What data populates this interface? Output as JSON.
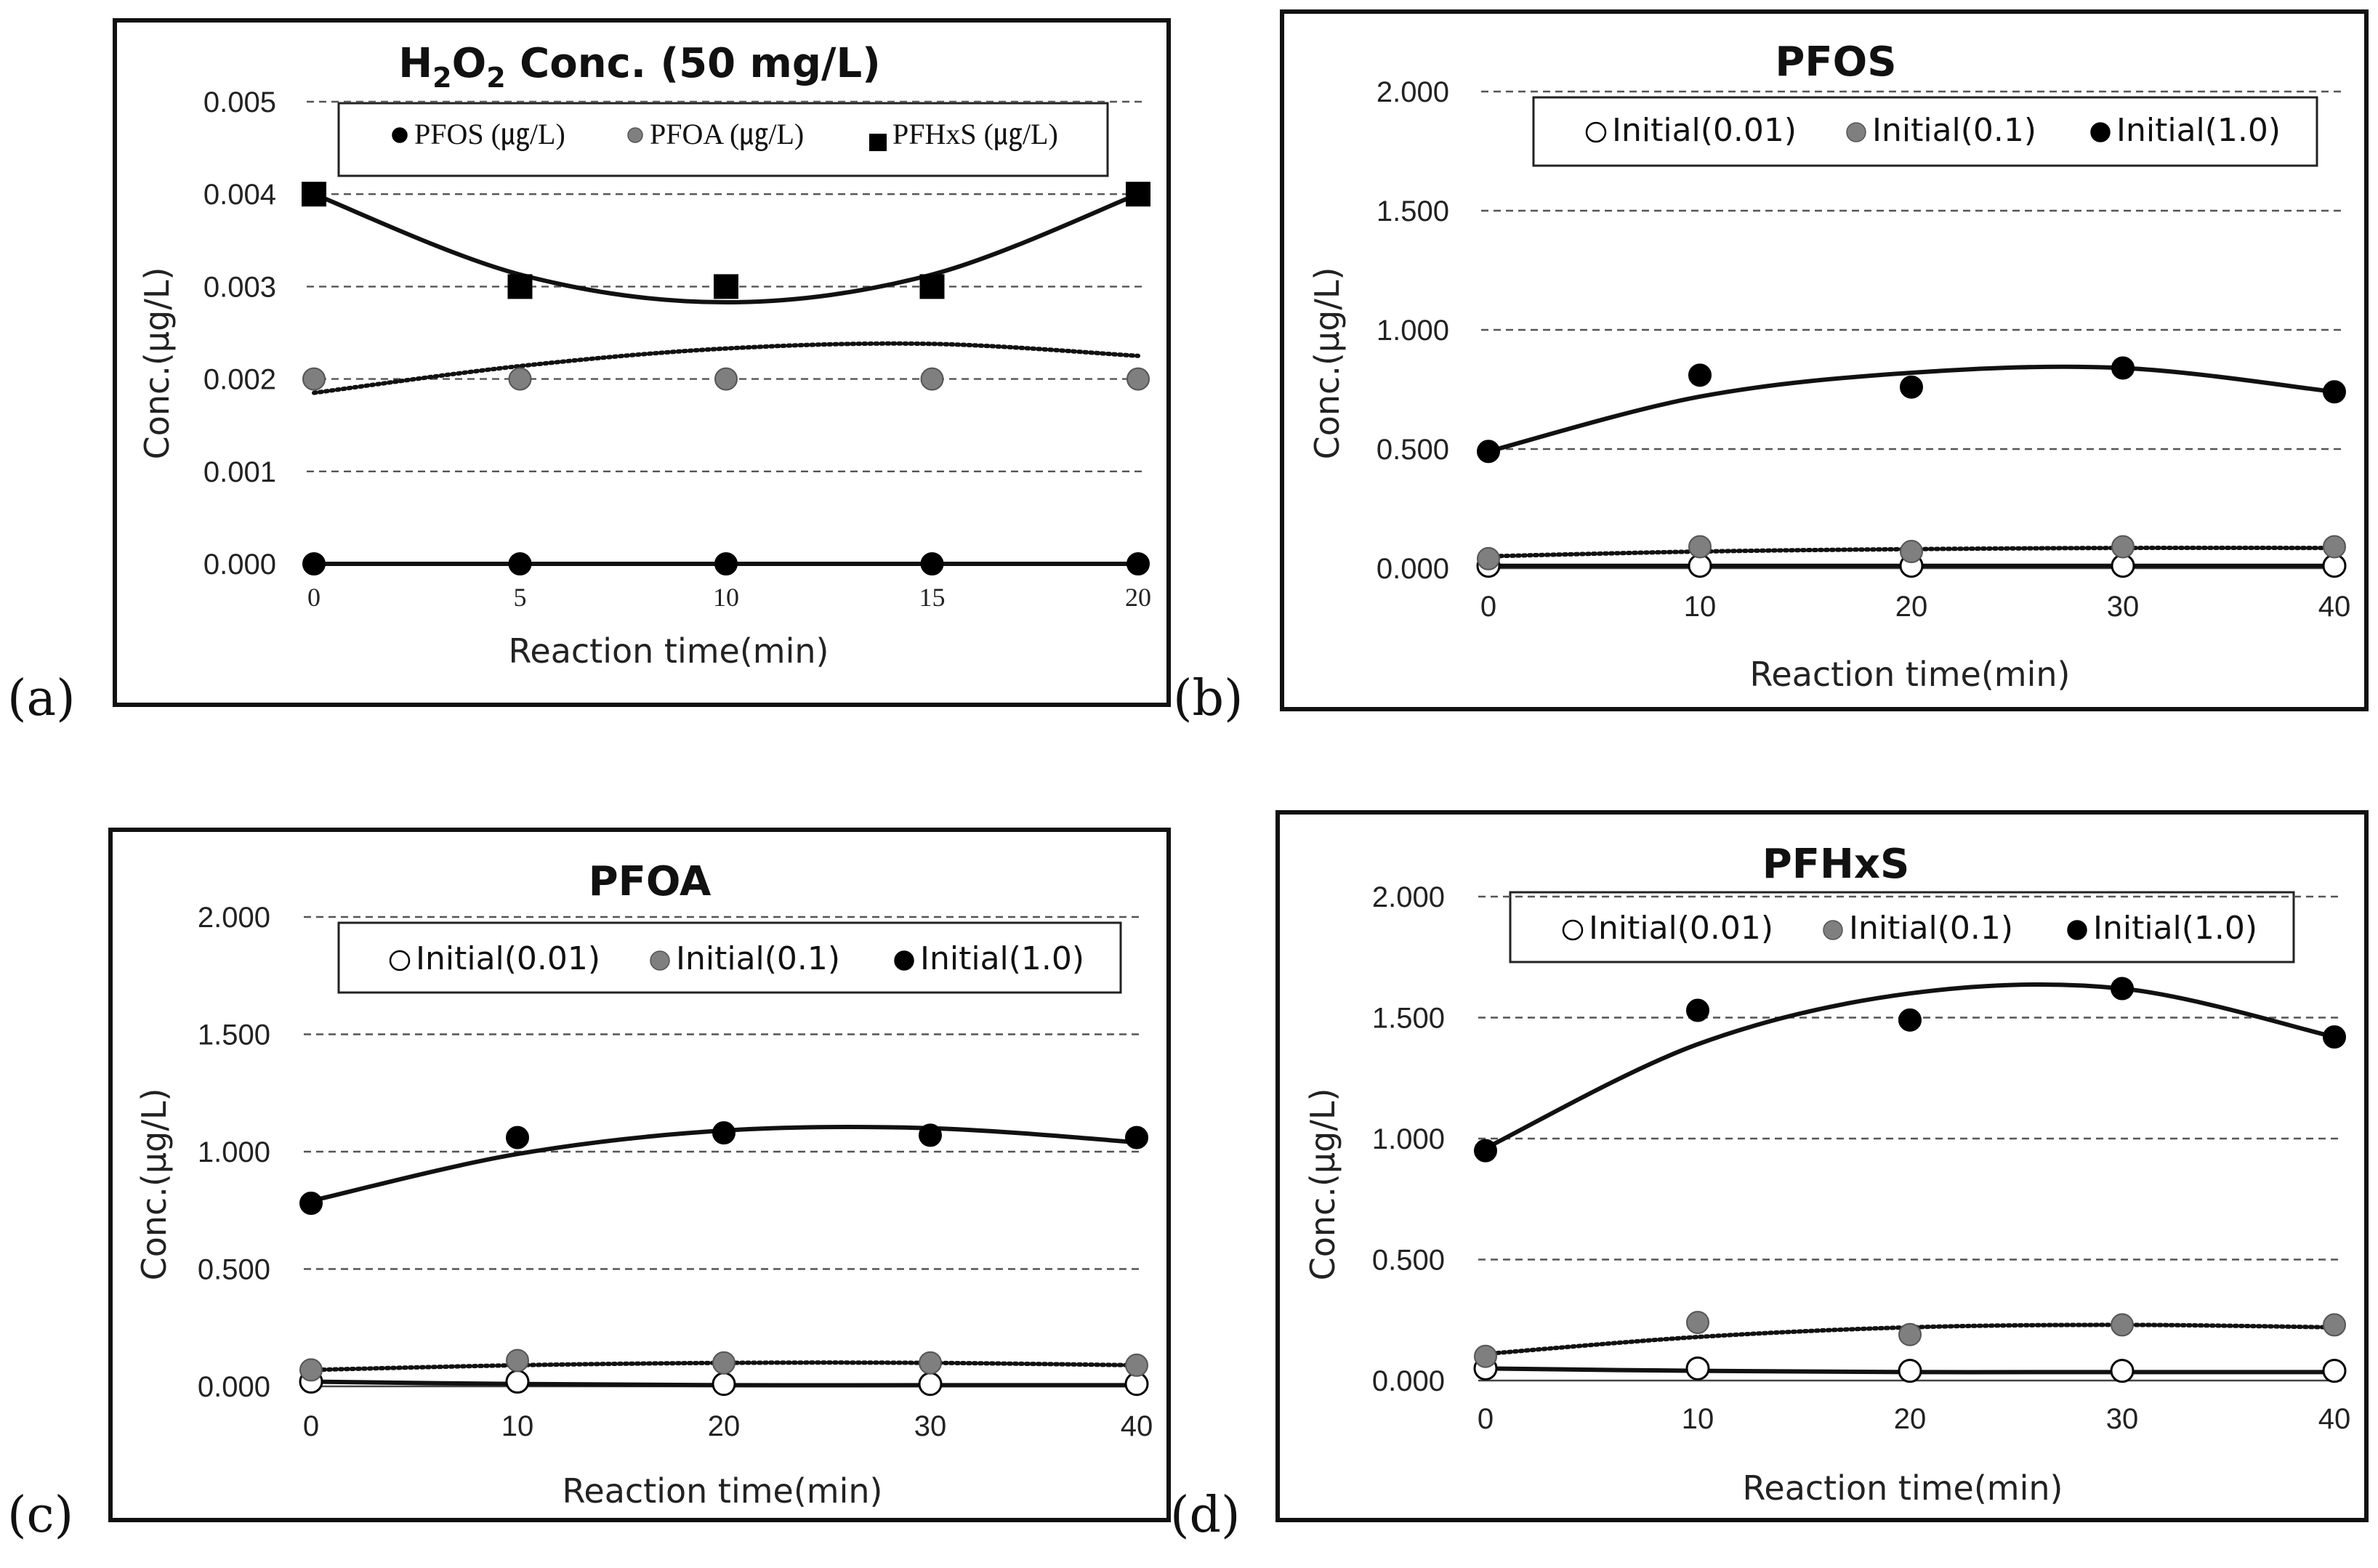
{
  "figure": {
    "panels": [
      {
        "letter": "(a)",
        "title_main": "H",
        "title_sub1": "2",
        "title_mid": "O",
        "title_sub2": "2",
        "title_rest": " Conc. (50 mg/L)"
      },
      {
        "letter": "(b)",
        "title": "PFOS"
      },
      {
        "letter": "(c)",
        "title": "PFOA"
      },
      {
        "letter": "(d)",
        "title": "PFHxS"
      }
    ]
  },
  "chart_data": [
    {
      "type": "scatter",
      "title": "H2O2 Conc. (50 mg/L)",
      "xlabel": "Reaction time(min)",
      "ylabel": "Conc.(μg/L)",
      "x": [
        0,
        5,
        10,
        15,
        20
      ],
      "xticks": [
        "0",
        "5",
        "10",
        "15",
        "20"
      ],
      "yticks": [
        "0.000",
        "0.001",
        "0.002",
        "0.003",
        "0.004",
        "0.005"
      ],
      "ylim": [
        0,
        0.005
      ],
      "grid": true,
      "legend_position": "top",
      "series": [
        {
          "name": "PFOS",
          "unit": "(㎍/L)",
          "marker": "circle",
          "fill": "#000000",
          "values": [
            0.0,
            0.0,
            0.0,
            0.0,
            0.0
          ],
          "trend": "solid"
        },
        {
          "name": "PFOA",
          "unit": "(㎍/L)",
          "marker": "circle",
          "fill": "#7f7f7f",
          "values": [
            0.002,
            0.002,
            0.002,
            0.002,
            0.002
          ],
          "trend": "dotted",
          "trend_values": [
            0.00185,
            0.00214,
            0.00233,
            0.00238,
            0.00225
          ]
        },
        {
          "name": "PFHxS",
          "unit": "(㎍/L)",
          "marker": "square",
          "fill": "#000000",
          "values": [
            0.004,
            0.003,
            0.003,
            0.003,
            0.004
          ],
          "trend": "solid",
          "trend_values": [
            0.004,
            0.00313,
            0.00283,
            0.00313,
            0.004
          ]
        }
      ]
    },
    {
      "type": "scatter",
      "title": "PFOS",
      "xlabel": "Reaction time(min)",
      "ylabel": "Conc.(μg/L)",
      "x": [
        0,
        10,
        20,
        30,
        40
      ],
      "xticks": [
        "0",
        "10",
        "20",
        "30",
        "40"
      ],
      "yticks": [
        "0.000",
        "0.500",
        "1.000",
        "1.500",
        "2.000"
      ],
      "ylim": [
        0,
        2.0
      ],
      "grid": true,
      "legend_position": "top",
      "series": [
        {
          "name": "Initial(0.01)",
          "marker": "circle",
          "fill": "#ffffff",
          "values": [
            0.01,
            0.01,
            0.01,
            0.01,
            0.01
          ],
          "trend": "solid"
        },
        {
          "name": "Initial(0.1)",
          "marker": "circle",
          "fill": "#7f7f7f",
          "values": [
            0.04,
            0.09,
            0.07,
            0.09,
            0.09
          ],
          "trend": "dotted",
          "trend_values": [
            0.05,
            0.07,
            0.08,
            0.085,
            0.085
          ]
        },
        {
          "name": "Initial(1.0)",
          "marker": "circle",
          "fill": "#000000",
          "values": [
            0.49,
            0.81,
            0.76,
            0.84,
            0.74
          ],
          "trend": "solid",
          "trend_values": [
            0.49,
            0.72,
            0.82,
            0.84,
            0.74
          ]
        }
      ]
    },
    {
      "type": "scatter",
      "title": "PFOA",
      "xlabel": "Reaction time(min)",
      "ylabel": "Conc.(μg/L)",
      "x": [
        0,
        10,
        20,
        30,
        40
      ],
      "xticks": [
        "0",
        "10",
        "20",
        "30",
        "40"
      ],
      "yticks": [
        "0.000",
        "0.500",
        "1.000",
        "1.500",
        "2.000"
      ],
      "ylim": [
        0,
        2.0
      ],
      "grid": true,
      "legend_position": "top",
      "series": [
        {
          "name": "Initial(0.01)",
          "marker": "circle",
          "fill": "#ffffff",
          "values": [
            0.02,
            0.02,
            0.01,
            0.01,
            0.01
          ],
          "trend": "solid",
          "trend_values": [
            0.02,
            0.01,
            0.005,
            0.005,
            0.005
          ]
        },
        {
          "name": "Initial(0.1)",
          "marker": "circle",
          "fill": "#7f7f7f",
          "values": [
            0.07,
            0.11,
            0.1,
            0.1,
            0.09
          ],
          "trend": "dotted",
          "trend_values": [
            0.07,
            0.09,
            0.1,
            0.1,
            0.09
          ]
        },
        {
          "name": "Initial(1.0)",
          "marker": "circle",
          "fill": "#000000",
          "values": [
            0.78,
            1.06,
            1.08,
            1.07,
            1.06
          ],
          "trend": "solid",
          "trend_values": [
            0.79,
            0.99,
            1.09,
            1.1,
            1.04
          ]
        }
      ]
    },
    {
      "type": "scatter",
      "title": "PFHxS",
      "xlabel": "Reaction time(min)",
      "ylabel": "Conc.(μg/L)",
      "x": [
        0,
        10,
        20,
        30,
        40
      ],
      "xticks": [
        "0",
        "10",
        "20",
        "30",
        "40"
      ],
      "yticks": [
        "0.000",
        "0.500",
        "1.000",
        "1.500",
        "2.000"
      ],
      "ylim": [
        0,
        2.0
      ],
      "grid": true,
      "legend_position": "top",
      "series": [
        {
          "name": "Initial(0.01)",
          "marker": "circle",
          "fill": "#ffffff",
          "values": [
            0.05,
            0.05,
            0.04,
            0.04,
            0.04
          ],
          "trend": "solid",
          "trend_values": [
            0.05,
            0.04,
            0.035,
            0.035,
            0.035
          ]
        },
        {
          "name": "Initial(0.1)",
          "marker": "circle",
          "fill": "#7f7f7f",
          "values": [
            0.1,
            0.24,
            0.19,
            0.23,
            0.23
          ],
          "trend": "dotted",
          "trend_values": [
            0.11,
            0.18,
            0.22,
            0.23,
            0.22
          ]
        },
        {
          "name": "Initial(1.0)",
          "marker": "circle",
          "fill": "#000000",
          "values": [
            0.95,
            1.53,
            1.49,
            1.62,
            1.42
          ],
          "trend": "solid",
          "trend_values": [
            0.96,
            1.39,
            1.6,
            1.62,
            1.42
          ]
        }
      ]
    }
  ]
}
